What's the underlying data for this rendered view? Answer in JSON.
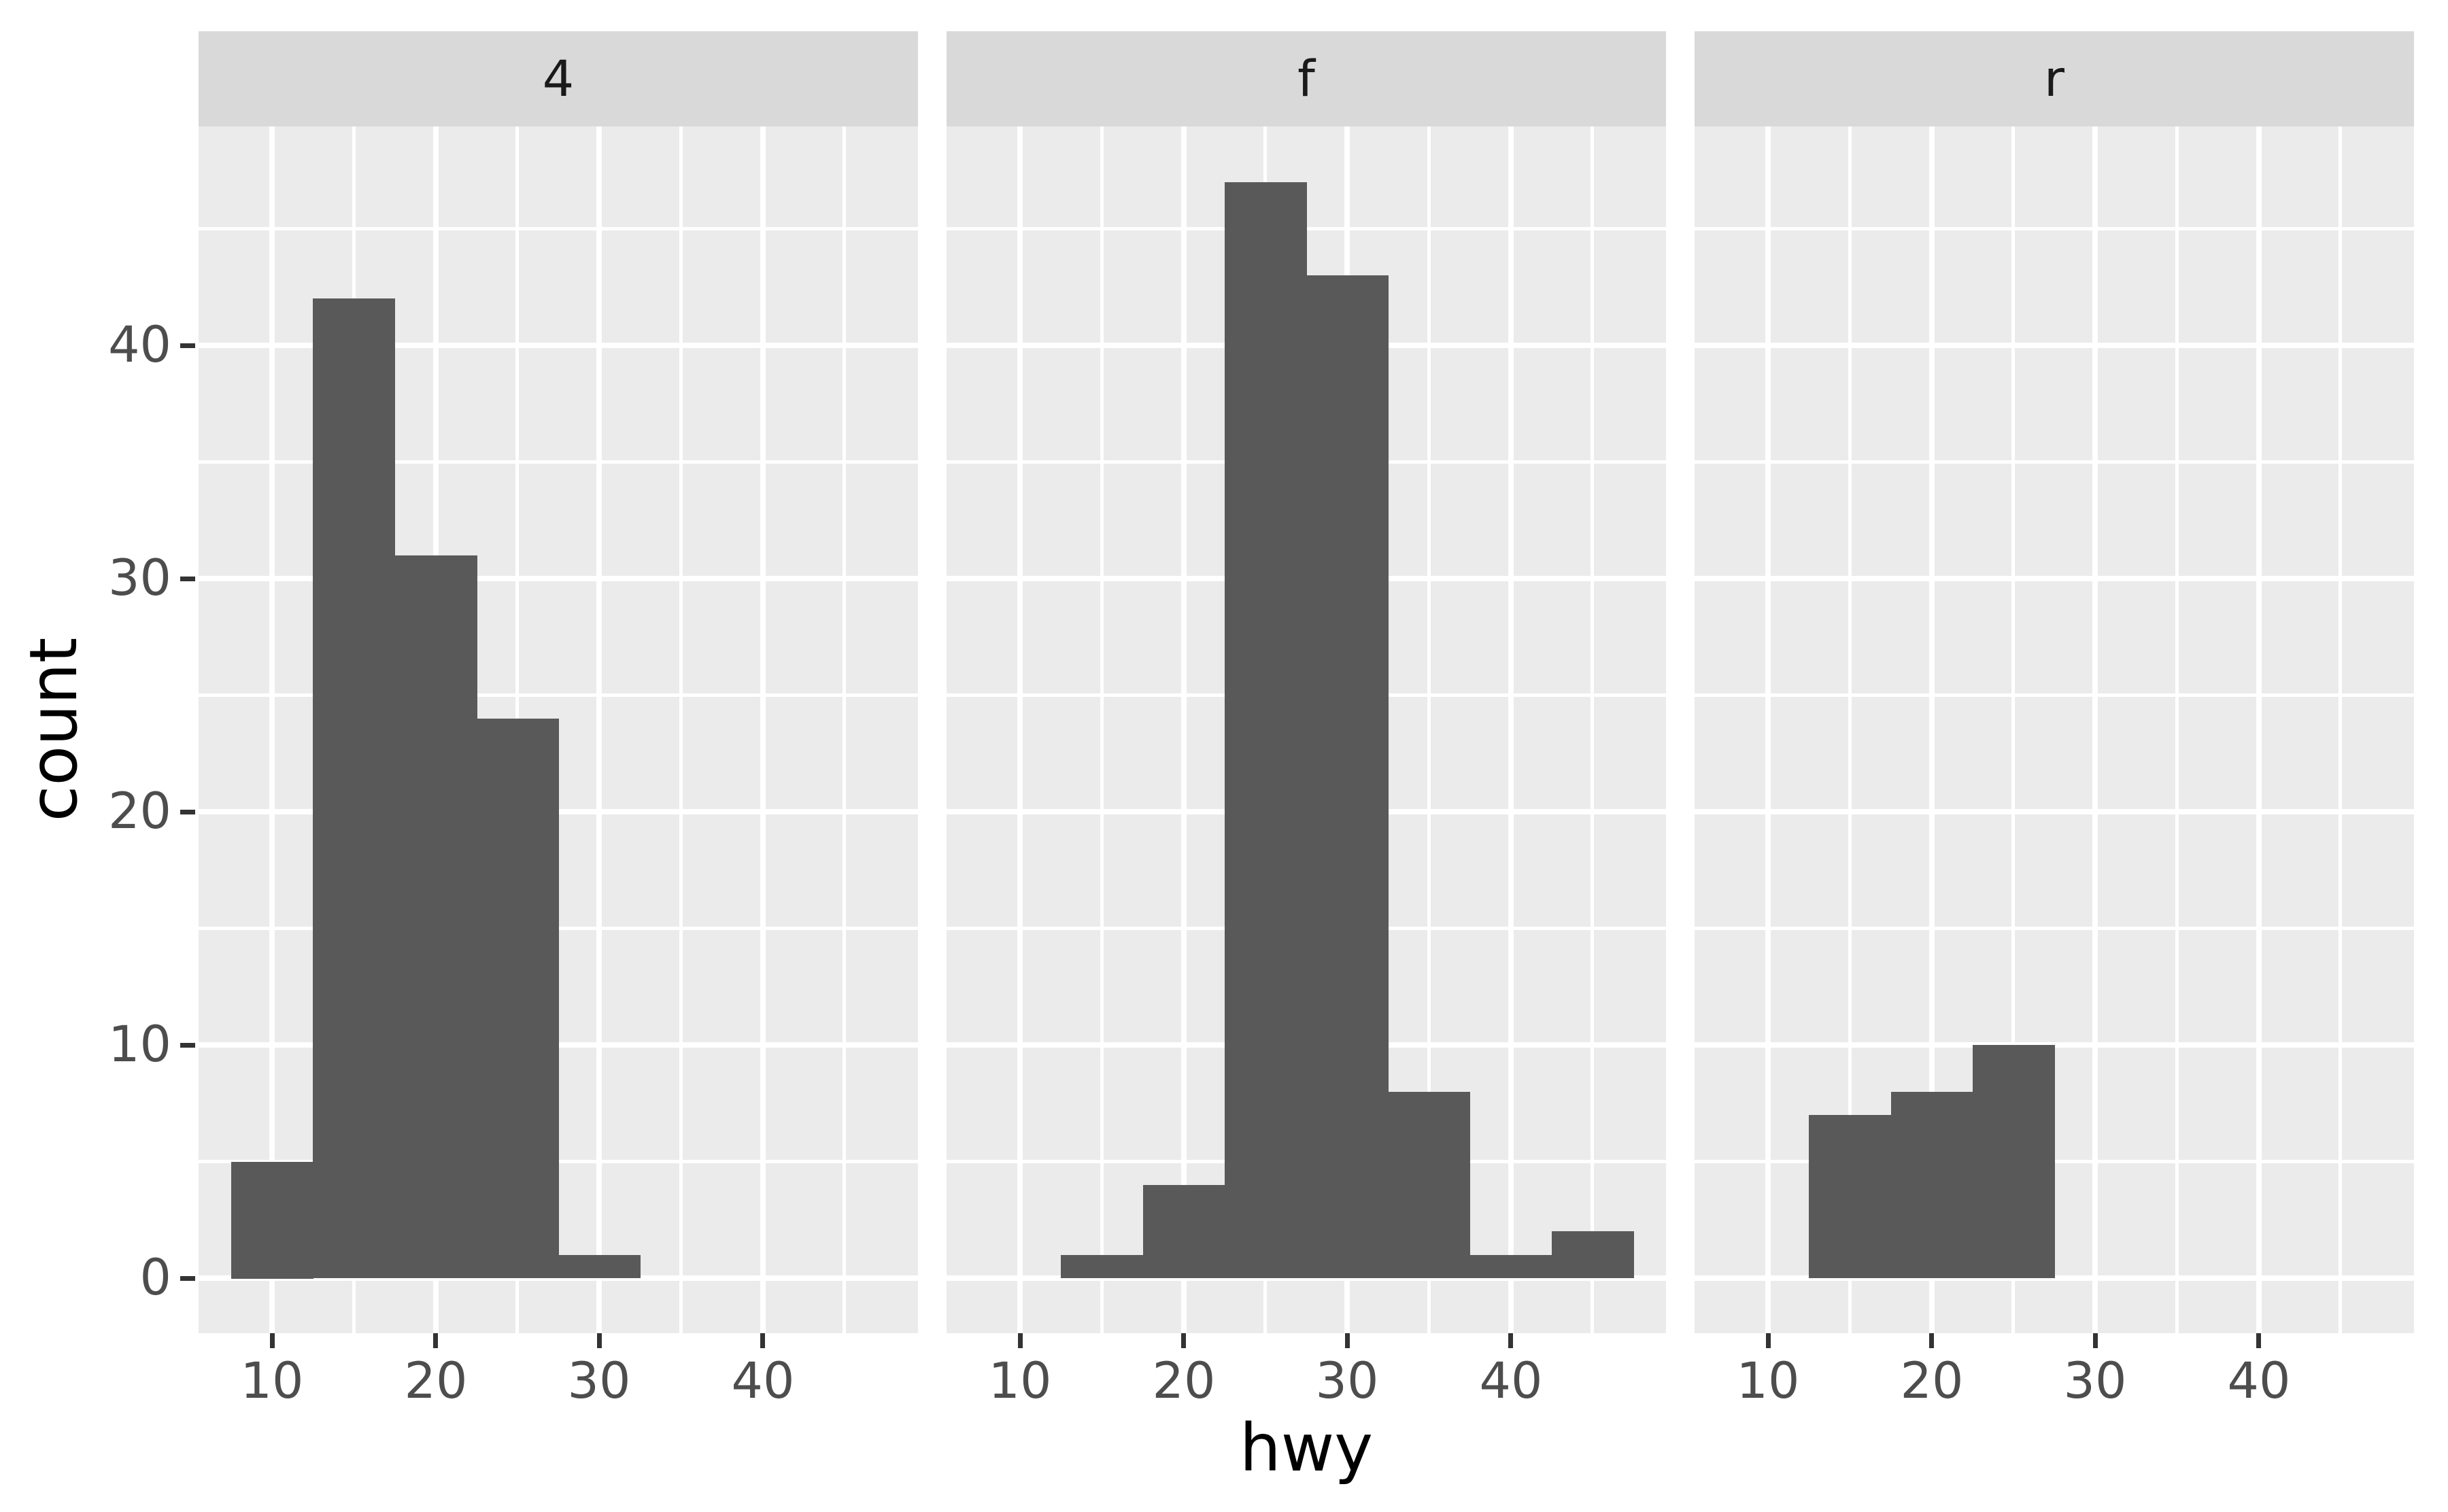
{
  "figure": {
    "xlabel": "hwy",
    "ylabel": "count"
  },
  "style": {
    "bar_fill": "#595959",
    "panel_bg": "#EBEBEB",
    "strip_bg": "#D9D9D9",
    "grid_color": "#FFFFFF",
    "axis_text_color": "#4D4D4D",
    "strip_text_color": "#1A1A1A",
    "axis_title_color": "#000000",
    "tick_mark_color": "#333333",
    "background": "#FFFFFF"
  },
  "chart_data": {
    "type": "bar",
    "subtype": "faceted-histogram",
    "title": "",
    "xlabel": "hwy",
    "ylabel": "count",
    "binwidth": 5,
    "grid": true,
    "legend_position": "none",
    "x_ticks": [
      10,
      20,
      30,
      40
    ],
    "y_ticks": [
      0,
      10,
      20,
      30,
      40
    ],
    "x_minor_ticks": [
      15,
      25,
      35,
      45
    ],
    "y_minor_ticks": [
      5,
      15,
      25,
      35,
      45
    ],
    "xlim": [
      5.5,
      49.5
    ],
    "ylim": [
      -2.36,
      49.4
    ],
    "facets": [
      {
        "label": "4",
        "bin_start": 7.5,
        "bin_edges": [
          7.5,
          12.5,
          17.5,
          22.5,
          27.5,
          32.5
        ],
        "counts": [
          5,
          42,
          31,
          24,
          1
        ]
      },
      {
        "label": "f",
        "bin_start": 12.5,
        "bin_edges": [
          12.5,
          17.5,
          22.5,
          27.5,
          32.5,
          37.5,
          42.5,
          47.5
        ],
        "counts": [
          1,
          4,
          47,
          43,
          8,
          1,
          2
        ]
      },
      {
        "label": "r",
        "bin_start": 12.5,
        "bin_edges": [
          12.5,
          17.5,
          22.5,
          27.5
        ],
        "counts": [
          7,
          8,
          10
        ]
      }
    ]
  }
}
